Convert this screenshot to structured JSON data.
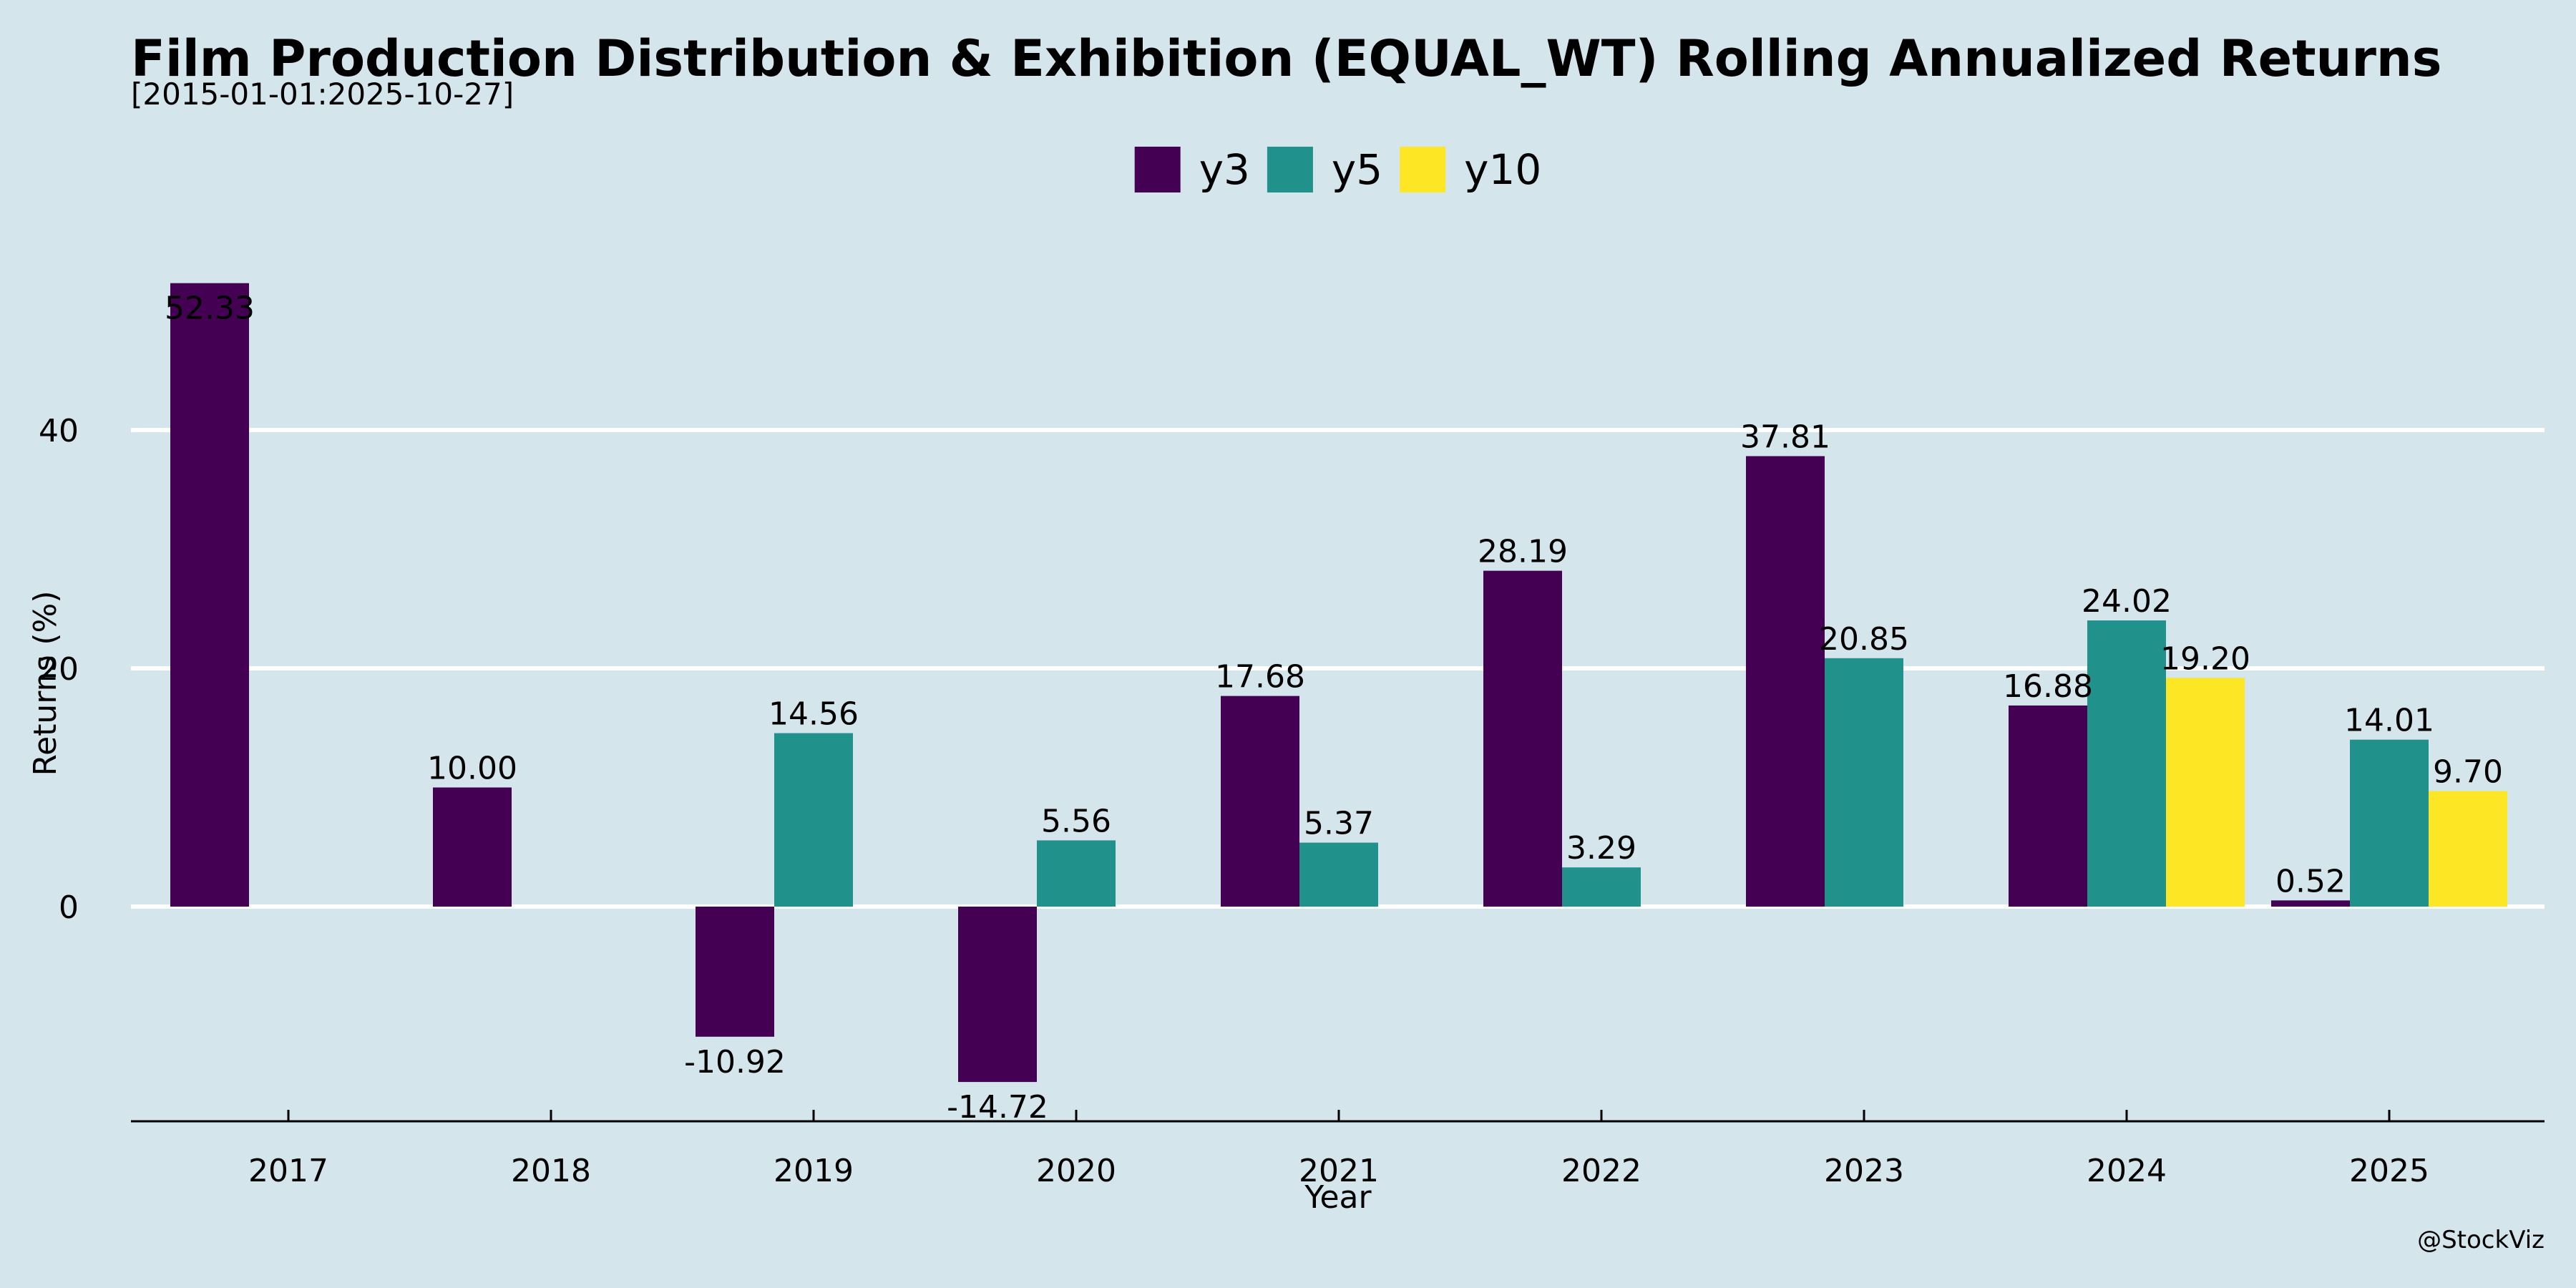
{
  "chart_data": {
    "type": "bar",
    "title": "Film Production Distribution & Exhibition (EQUAL_WT) Rolling Annualized Returns",
    "subtitle": "[2015-01-01:2025-10-27]",
    "xlabel": "Year",
    "ylabel": "Returns (%)",
    "categories": [
      "2017",
      "2018",
      "2019",
      "2020",
      "2021",
      "2022",
      "2023",
      "2024",
      "2025"
    ],
    "series": [
      {
        "name": "y3",
        "color": "#440154",
        "values": [
          52.33,
          10.0,
          -10.92,
          -14.72,
          17.68,
          28.19,
          37.81,
          16.88,
          0.52
        ],
        "labels": [
          "52.33",
          "10.00",
          "-10.92",
          "-14.72",
          "17.68",
          "28.19",
          "37.81",
          "16.88",
          "0.52"
        ]
      },
      {
        "name": "y5",
        "color": "#21918c",
        "values": [
          null,
          null,
          14.56,
          5.56,
          5.37,
          3.29,
          20.85,
          24.02,
          14.01
        ],
        "labels": [
          "",
          "",
          "14.56",
          "5.56",
          "5.37",
          "3.29",
          "20.85",
          "24.02",
          "14.01"
        ]
      },
      {
        "name": "y10",
        "color": "#fde725",
        "values": [
          null,
          null,
          null,
          null,
          null,
          null,
          null,
          19.2,
          9.7
        ],
        "labels": [
          "",
          "",
          "",
          "",
          "",
          "",
          "",
          "19.20",
          "9.70"
        ]
      }
    ],
    "yticks": [
      0,
      20,
      40
    ],
    "ytick_labels": [
      "0",
      "20",
      "40"
    ],
    "ylim": [
      -18,
      60
    ],
    "grid": "horizontal",
    "legend_position": "top-center",
    "background_color": "#d5e5ec",
    "watermark": "@StockViz"
  }
}
